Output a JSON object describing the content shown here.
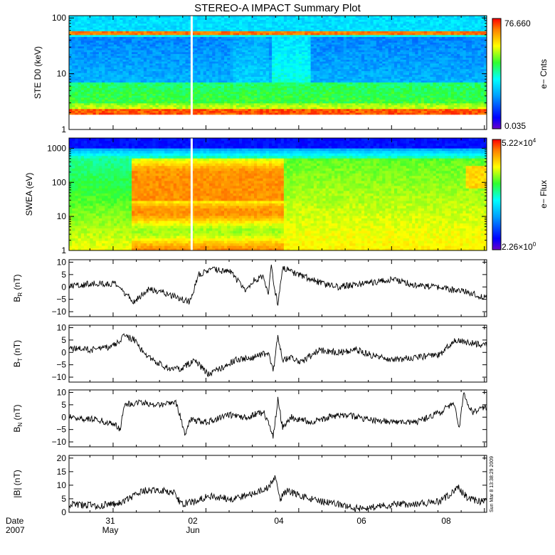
{
  "title": "STEREO-A IMPACT Summary Plot",
  "timestamp_note": "Sun Mar  8 13:38:29 2009",
  "x_axis": {
    "corner_label_line1": "Date",
    "corner_label_line2": "2007",
    "ticks": [
      {
        "day": "31",
        "month": "May"
      },
      {
        "day": "02",
        "month": "Jun"
      },
      {
        "day": "04",
        "month": ""
      },
      {
        "day": "06",
        "month": ""
      },
      {
        "day": "08",
        "month": ""
      }
    ]
  },
  "chart_data": [
    {
      "type": "heatmap",
      "name": "ste",
      "ylabel": "STE D0 (keV)",
      "yscale": "log",
      "ylim": [
        1,
        110
      ],
      "yticks": [
        "1",
        "10",
        "100"
      ],
      "colorbar_label": "e− Cnts",
      "colorbar_max": "76.660",
      "colorbar_min": "0.035",
      "description_bands": [
        {
          "range_keV": [
            1.9,
            2.3
          ],
          "level": "high"
        },
        {
          "range_keV": [
            2.3,
            7
          ],
          "level": "medium"
        },
        {
          "range_keV": [
            7,
            45
          ],
          "level": "low"
        },
        {
          "range_keV": [
            50,
            60
          ],
          "level": "high"
        },
        {
          "range_keV": [
            60,
            110
          ],
          "level": "low"
        }
      ]
    },
    {
      "type": "heatmap",
      "name": "swea",
      "ylabel": "SWEA (eV)",
      "yscale": "log",
      "ylim": [
        1,
        2000
      ],
      "yticks": [
        "1",
        "10",
        "100",
        "1000"
      ],
      "colorbar_label": "e− Flux",
      "colorbar_max_mantissa": "5.22×10",
      "colorbar_max_exp": "4",
      "colorbar_min_mantissa": "2.26×10",
      "colorbar_min_exp": "0"
    },
    {
      "type": "line",
      "name": "br",
      "ylabel_main": "B",
      "ylabel_sub": "R",
      "ylabel_unit": " (nT)",
      "ylim": [
        -12,
        11
      ],
      "yticks": [
        "−10",
        "−5",
        "0",
        "5",
        "10"
      ],
      "ytick_values": [
        -10,
        -5,
        0,
        5,
        10
      ],
      "profile": [
        [
          0,
          0
        ],
        [
          0.5,
          1.5
        ],
        [
          1,
          1
        ],
        [
          1.4,
          -6
        ],
        [
          1.7,
          -1
        ],
        [
          2,
          -2
        ],
        [
          2.3,
          -4
        ],
        [
          2.6,
          -6
        ],
        [
          2.8,
          5
        ],
        [
          3.1,
          7
        ],
        [
          3.5,
          6
        ],
        [
          3.8,
          -2
        ],
        [
          4,
          3
        ],
        [
          4.2,
          4
        ],
        [
          4.3,
          -4
        ],
        [
          4.35,
          9
        ],
        [
          4.5,
          -8
        ],
        [
          4.6,
          8
        ],
        [
          4.8,
          6
        ],
        [
          5.1,
          4
        ],
        [
          5.5,
          1
        ],
        [
          5.8,
          0
        ],
        [
          6.2,
          1
        ],
        [
          6.6,
          2
        ],
        [
          7,
          3
        ],
        [
          7.4,
          1
        ],
        [
          7.8,
          0
        ],
        [
          8.2,
          -1
        ],
        [
          8.6,
          -2
        ],
        [
          8.9,
          -4
        ]
      ]
    },
    {
      "type": "line",
      "name": "bt",
      "ylabel_main": "B",
      "ylabel_sub": "T",
      "ylabel_unit": " (nT)",
      "ylim": [
        -12,
        11
      ],
      "yticks": [
        "−10",
        "−5",
        "0",
        "5",
        "10"
      ],
      "ytick_values": [
        -10,
        -5,
        0,
        5,
        10
      ],
      "profile": [
        [
          0,
          1.5
        ],
        [
          0.6,
          1
        ],
        [
          1,
          3
        ],
        [
          1.2,
          7
        ],
        [
          1.4,
          5
        ],
        [
          1.6,
          0
        ],
        [
          1.8,
          -3
        ],
        [
          2.1,
          -6
        ],
        [
          2.4,
          -7
        ],
        [
          2.7,
          -3
        ],
        [
          3,
          -9
        ],
        [
          3.3,
          -6
        ],
        [
          3.6,
          -3
        ],
        [
          4,
          -2
        ],
        [
          4.3,
          0
        ],
        [
          4.4,
          -8
        ],
        [
          4.5,
          7
        ],
        [
          4.6,
          -3
        ],
        [
          4.8,
          -2
        ],
        [
          5,
          -4
        ],
        [
          5.4,
          1
        ],
        [
          5.8,
          0
        ],
        [
          6.2,
          1
        ],
        [
          6.5,
          -1
        ],
        [
          7,
          -3
        ],
        [
          7.5,
          -2
        ],
        [
          8,
          -1
        ],
        [
          8.3,
          5
        ],
        [
          8.6,
          4
        ],
        [
          8.9,
          3
        ]
      ]
    },
    {
      "type": "line",
      "name": "bn",
      "ylabel_main": "B",
      "ylabel_sub": "N",
      "ylabel_unit": " (nT)",
      "ylim": [
        -12,
        11
      ],
      "yticks": [
        "−10",
        "−5",
        "0",
        "5",
        "10"
      ],
      "ytick_values": [
        -10,
        -5,
        0,
        5,
        10
      ],
      "profile": [
        [
          0,
          0
        ],
        [
          0.6,
          -1
        ],
        [
          1,
          -3
        ],
        [
          1.1,
          -5
        ],
        [
          1.2,
          5
        ],
        [
          1.5,
          6
        ],
        [
          1.9,
          5
        ],
        [
          2.3,
          6
        ],
        [
          2.4,
          0
        ],
        [
          2.5,
          -7
        ],
        [
          2.6,
          -1
        ],
        [
          3,
          -2
        ],
        [
          3.4,
          1
        ],
        [
          3.8,
          0
        ],
        [
          4.2,
          2
        ],
        [
          4.4,
          -8
        ],
        [
          4.5,
          7
        ],
        [
          4.6,
          -4
        ],
        [
          4.8,
          0
        ],
        [
          5.2,
          -2
        ],
        [
          5.6,
          0
        ],
        [
          6,
          1
        ],
        [
          6.4,
          -1
        ],
        [
          7,
          -2
        ],
        [
          7.5,
          -2
        ],
        [
          8,
          2
        ],
        [
          8.3,
          6
        ],
        [
          8.4,
          -5
        ],
        [
          8.5,
          9
        ],
        [
          8.7,
          2
        ],
        [
          8.9,
          4
        ]
      ]
    },
    {
      "type": "line",
      "name": "bmag",
      "ylabel_main": "|B|",
      "ylabel_sub": "",
      "ylabel_unit": " (nT)",
      "ylim": [
        0,
        21
      ],
      "yticks": [
        "0",
        "5",
        "10",
        "15",
        "20"
      ],
      "ytick_values": [
        0,
        5,
        10,
        15,
        20
      ],
      "profile": [
        [
          0,
          3
        ],
        [
          0.6,
          2.5
        ],
        [
          1,
          3
        ],
        [
          1.3,
          5
        ],
        [
          1.6,
          8
        ],
        [
          2,
          8
        ],
        [
          2.3,
          7
        ],
        [
          2.4,
          3
        ],
        [
          2.7,
          4
        ],
        [
          3,
          6
        ],
        [
          3.5,
          5
        ],
        [
          4,
          7
        ],
        [
          4.3,
          9
        ],
        [
          4.45,
          14
        ],
        [
          4.55,
          5
        ],
        [
          4.7,
          8
        ],
        [
          5,
          6
        ],
        [
          5.4,
          4
        ],
        [
          5.8,
          3
        ],
        [
          6.2,
          1.5
        ],
        [
          6.6,
          2
        ],
        [
          7,
          3
        ],
        [
          7.5,
          3
        ],
        [
          8,
          4
        ],
        [
          8.4,
          9
        ],
        [
          8.6,
          5
        ],
        [
          8.9,
          4
        ]
      ]
    }
  ]
}
